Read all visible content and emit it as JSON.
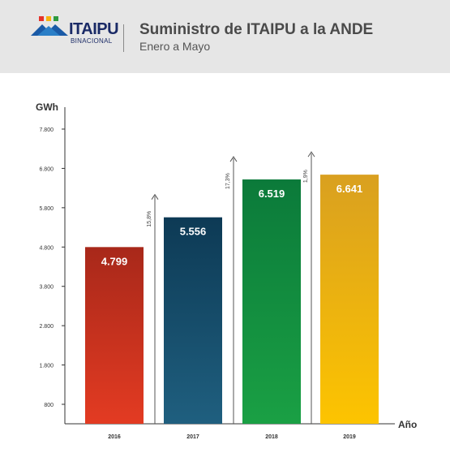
{
  "header": {
    "logo_name": "ITAIPU",
    "logo_sub": "BINACIONAL",
    "title": "Suministro de ITAIPU a la ANDE",
    "subtitle": "Enero a Mayo"
  },
  "chart_data": {
    "type": "bar",
    "title": "Suministro de ITAIPU a la ANDE",
    "subtitle": "Enero a Mayo",
    "xlabel": "Año",
    "ylabel": "GWh",
    "categories": [
      "2016",
      "2017",
      "2018",
      "2019"
    ],
    "values": [
      4799,
      5556,
      6519,
      6641
    ],
    "value_labels": [
      "4.799",
      "5.556",
      "6.519",
      "6.641"
    ],
    "growth_labels": [
      "15,8%",
      "17,3%",
      "1,9%"
    ],
    "yticks": [
      800,
      1800,
      2800,
      3800,
      4800,
      5800,
      6800,
      7800
    ],
    "ytick_labels": [
      "800",
      "1.800",
      "2.800",
      "3.800",
      "4.800",
      "5.800",
      "6.800",
      "7.800"
    ],
    "grid": false,
    "bar_colors": [
      {
        "top": "#a8281a",
        "bottom": "#e33b22"
      },
      {
        "top": "#0d3a55",
        "bottom": "#1f5f7f"
      },
      {
        "top": "#0b7a3a",
        "bottom": "#1aa044"
      },
      {
        "top": "#d9a020",
        "bottom": "#fdc400"
      }
    ]
  }
}
